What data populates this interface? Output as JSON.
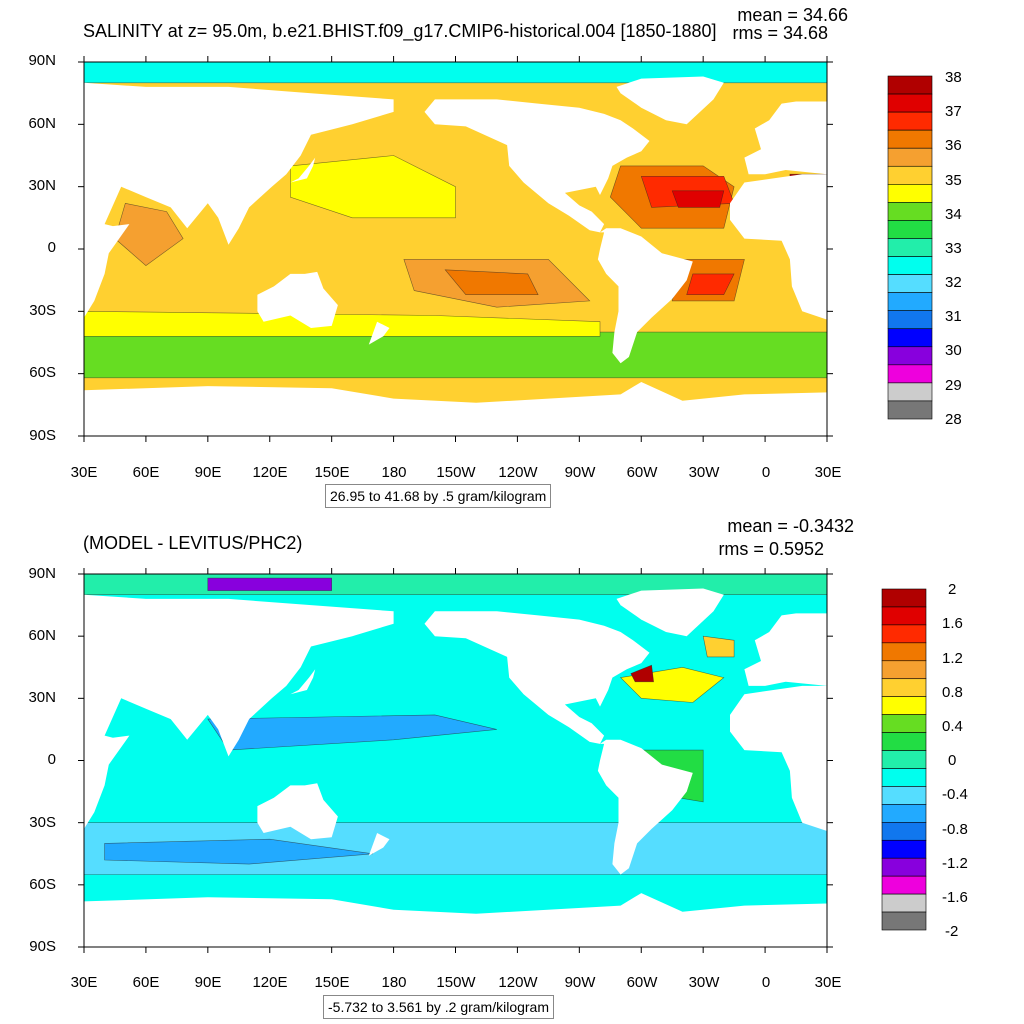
{
  "panels": [
    {
      "id": "salinity",
      "title": "SALINITY at z=  95.0m, b.e21.BHIST.f09_g17.CMIP6-historical.004 [1850-1880]",
      "stats": {
        "mean": "mean = 34.66",
        "rms": "rms = 34.68"
      },
      "lat_labels": [
        "90N",
        "60N",
        "30N",
        "0",
        "30S",
        "60S",
        "90S"
      ],
      "lon_labels": [
        "30E",
        "60E",
        "90E",
        "120E",
        "150E",
        "180",
        "150W",
        "120W",
        "90W",
        "60W",
        "30W",
        "0",
        "30E"
      ],
      "range_text": "26.95 to 41.68 by .5 gram/kilogram",
      "colorbar": {
        "labels": [
          "38",
          "37",
          "36",
          "35",
          "34",
          "33",
          "32",
          "31",
          "30",
          "29",
          "28"
        ],
        "colors": [
          "#b00000",
          "#e00000",
          "#ff2a00",
          "#f07800",
          "#f5a030",
          "#ffd030",
          "#ffff00",
          "#66dd22",
          "#22dd44",
          "#22eeaa",
          "#00ffee",
          "#55ddff",
          "#22aaff",
          "#1177ee",
          "#0000ff",
          "#8800dd",
          "#ee00dd",
          "#cccccc",
          "#777777"
        ]
      }
    },
    {
      "id": "difference",
      "title": "(MODEL - LEVITUS/PHC2)",
      "stats": {
        "mean": "mean = -0.3432",
        "rms": "rms = 0.5952"
      },
      "lat_labels": [
        "90N",
        "60N",
        "30N",
        "0",
        "30S",
        "60S",
        "90S"
      ],
      "lon_labels": [
        "30E",
        "60E",
        "90E",
        "120E",
        "150E",
        "180",
        "150W",
        "120W",
        "90W",
        "60W",
        "30W",
        "0",
        "30E"
      ],
      "range_text": "-5.732 to 3.561 by .2 gram/kilogram",
      "colorbar": {
        "labels": [
          "2",
          "1.6",
          "1.2",
          "0.8",
          "0.4",
          "0",
          "-0.4",
          "-0.8",
          "-1.2",
          "-1.6",
          "-2"
        ],
        "colors": [
          "#b00000",
          "#e00000",
          "#ff2a00",
          "#f07800",
          "#f5a030",
          "#ffd030",
          "#ffff00",
          "#66dd22",
          "#22dd44",
          "#22eeaa",
          "#00ffee",
          "#55ddff",
          "#22aaff",
          "#1177ee",
          "#0000ff",
          "#8800dd",
          "#ee00dd",
          "#cccccc",
          "#777777"
        ]
      }
    }
  ]
}
